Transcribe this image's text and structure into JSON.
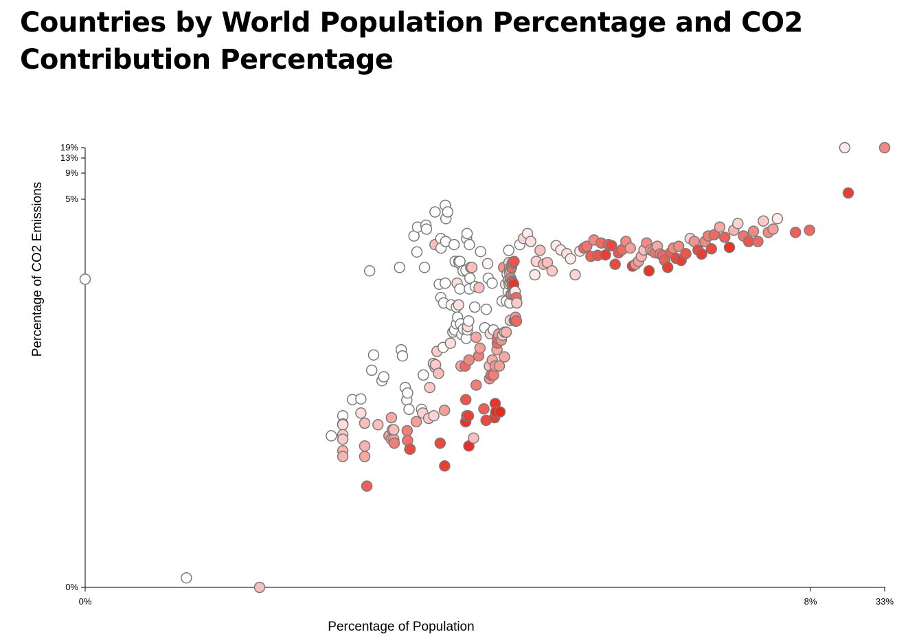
{
  "chart_data": {
    "type": "scatter",
    "title": "Countries by World Population Percentage and CO2 Contribution Percentage",
    "xlabel": "Percentage of Population",
    "ylabel": "Percentage of CO2 Emissions",
    "x_scale": "log",
    "y_scale": "log",
    "x_ticks": [
      "0%",
      "8%",
      "33%"
    ],
    "y_ticks": [
      "19%",
      "13%",
      "9%",
      "5%",
      "0%"
    ],
    "color_low": "#ffffff",
    "color_high": "#e8291e",
    "points": [
      [
        0.0001,
        0.35,
        0
      ],
      [
        0.0005,
        4e-05,
        0
      ],
      [
        0.0016,
        3e-05,
        0.3
      ],
      [
        0.005,
        0.003,
        0
      ],
      [
        0.006,
        0.0055,
        0
      ],
      [
        0.006,
        0.0043,
        0.15
      ],
      [
        0.006,
        0.0042,
        0.15
      ],
      [
        0.006,
        0.0031,
        0.25
      ],
      [
        0.006,
        0.0027,
        0.25
      ],
      [
        0.006,
        0.0019,
        0.35
      ],
      [
        0.006,
        0.0016,
        0.35
      ],
      [
        0.007,
        0.009,
        0
      ],
      [
        0.008,
        0.0092,
        0
      ],
      [
        0.008,
        0.006,
        0.15
      ],
      [
        0.0085,
        0.0044,
        0.3
      ],
      [
        0.0085,
        0.0022,
        0.35
      ],
      [
        0.0085,
        0.0016,
        0.4
      ],
      [
        0.0088,
        0.00065,
        0.75
      ],
      [
        0.0092,
        0.45,
        0
      ],
      [
        0.0095,
        0.022,
        0
      ],
      [
        0.0098,
        0.035,
        0
      ],
      [
        0.0105,
        0.0042,
        0.3
      ],
      [
        0.0112,
        0.016,
        0
      ],
      [
        0.0115,
        0.018,
        0
      ],
      [
        0.0125,
        0.003,
        0.45
      ],
      [
        0.013,
        0.0027,
        0.45
      ],
      [
        0.013,
        0.0052,
        0.4
      ],
      [
        0.0132,
        0.0036,
        0.45
      ],
      [
        0.0135,
        0.0027,
        0.45
      ],
      [
        0.0135,
        0.0036,
        0.3
      ],
      [
        0.0136,
        0.0024,
        0.6
      ],
      [
        0.0148,
        0.5,
        0
      ],
      [
        0.0152,
        0.041,
        0
      ],
      [
        0.0155,
        0.034,
        0
      ],
      [
        0.0162,
        0.013,
        0
      ],
      [
        0.0166,
        0.0089,
        0
      ],
      [
        0.0168,
        0.011,
        0
      ],
      [
        0.0167,
        0.0035,
        0.6
      ],
      [
        0.0168,
        0.0026,
        0.65
      ],
      [
        0.0172,
        0.0067,
        0
      ],
      [
        0.0174,
        0.002,
        0.75
      ],
      [
        0.0175,
        0.002,
        0.85
      ],
      [
        0.0186,
        1.3,
        0
      ],
      [
        0.0193,
        0.0046,
        0.45
      ],
      [
        0.0195,
        0.8,
        0
      ],
      [
        0.0197,
        1.7,
        0
      ],
      [
        0.021,
        0.0067,
        0
      ],
      [
        0.0214,
        0.006,
        0.2
      ],
      [
        0.0216,
        0.019,
        0
      ],
      [
        0.022,
        0.5,
        0
      ],
      [
        0.0225,
        1.8,
        0
      ],
      [
        0.0227,
        1.6,
        0
      ],
      [
        0.0235,
        0.0051,
        0.25
      ],
      [
        0.0239,
        0.013,
        0.25
      ],
      [
        0.0253,
        0.027,
        0.2
      ],
      [
        0.0255,
        0.0055,
        0.2
      ],
      [
        0.026,
        0.024,
        0.25
      ],
      [
        0.026,
        1.0,
        0.3
      ],
      [
        0.026,
        2.7,
        0
      ],
      [
        0.0262,
        0.026,
        0.25
      ],
      [
        0.0268,
        0.039,
        0.25
      ],
      [
        0.0275,
        0.02,
        0.3
      ],
      [
        0.0278,
        0.3,
        0
      ],
      [
        0.0282,
        0.0024,
        0.85
      ],
      [
        0.0285,
        0.2,
        0
      ],
      [
        0.0285,
        1.2,
        0
      ],
      [
        0.0286,
        0.9,
        0
      ],
      [
        0.0296,
        0.044,
        0
      ],
      [
        0.0298,
        0.17,
        0
      ],
      [
        0.0302,
        0.0065,
        0.45
      ],
      [
        0.0303,
        0.0012,
        0.9
      ],
      [
        0.0306,
        0.31,
        0
      ],
      [
        0.0306,
        3.3,
        0
      ],
      [
        0.0308,
        1.1,
        0
      ],
      [
        0.0309,
        2.2,
        0
      ],
      [
        0.0318,
        2.7,
        0
      ],
      [
        0.0332,
        0.05,
        0.15
      ],
      [
        0.0336,
        0.16,
        0
      ],
      [
        0.0345,
        0.07,
        0.15
      ],
      [
        0.0352,
        1.0,
        0
      ],
      [
        0.0355,
        0.075,
        0
      ],
      [
        0.0358,
        0.6,
        0
      ],
      [
        0.0365,
        0.15,
        0
      ],
      [
        0.0366,
        0.09,
        0
      ],
      [
        0.0369,
        0.31,
        0.15
      ],
      [
        0.0372,
        0.11,
        0
      ],
      [
        0.0378,
        0.16,
        0.15
      ],
      [
        0.038,
        0.6,
        0
      ],
      [
        0.0382,
        0.57,
        0.1
      ],
      [
        0.0386,
        0.6,
        0
      ],
      [
        0.0386,
        0.26,
        0
      ],
      [
        0.039,
        0.09,
        0
      ],
      [
        0.0393,
        0.025,
        0.4
      ],
      [
        0.0398,
        0.065,
        0
      ],
      [
        0.0406,
        0.45,
        0.2
      ],
      [
        0.0406,
        0.45,
        0
      ],
      [
        0.0409,
        0.077,
        0
      ],
      [
        0.042,
        0.025,
        0.7
      ],
      [
        0.0423,
        0.0046,
        0.95
      ],
      [
        0.0424,
        0.009,
        0.8
      ],
      [
        0.0425,
        0.46,
        0
      ],
      [
        0.0427,
        0.058,
        0
      ],
      [
        0.0429,
        1.2,
        0.05
      ],
      [
        0.043,
        0.0055,
        0.85
      ],
      [
        0.0433,
        1.4,
        0
      ],
      [
        0.0434,
        0.075,
        0.05
      ],
      [
        0.0436,
        0.084,
        0.1
      ],
      [
        0.0437,
        0.083,
        0.15
      ],
      [
        0.0442,
        0.0055,
        0.9
      ],
      [
        0.0444,
        0.098,
        0
      ],
      [
        0.0445,
        0.0022,
        0.98
      ],
      [
        0.0446,
        0.03,
        0.55
      ],
      [
        0.0449,
        0.26,
        0
      ],
      [
        0.0449,
        1.0,
        0
      ],
      [
        0.0453,
        0.36,
        0
      ],
      [
        0.0458,
        0.5,
        0
      ],
      [
        0.0467,
        0.5,
        0.3
      ],
      [
        0.048,
        0.0028,
        0.3
      ],
      [
        0.0489,
        0.15,
        0
      ],
      [
        0.0493,
        0.28,
        0
      ],
      [
        0.0499,
        0.06,
        0.4
      ],
      [
        0.05,
        0.014,
        0.6
      ],
      [
        0.052,
        0.034,
        0.6
      ],
      [
        0.0523,
        0.27,
        0.3
      ],
      [
        0.0531,
        0.043,
        0.45
      ],
      [
        0.0536,
        0.81,
        0
      ],
      [
        0.0565,
        0.0068,
        0.75
      ],
      [
        0.0573,
        0.08,
        0
      ],
      [
        0.0585,
        0.0048,
        0.85
      ],
      [
        0.0587,
        0.14,
        0
      ],
      [
        0.06,
        0.56,
        0.05
      ],
      [
        0.0606,
        0.36,
        0
      ],
      [
        0.0617,
        0.025,
        0.3
      ],
      [
        0.0619,
        0.017,
        0.5
      ],
      [
        0.0625,
        0.067,
        0.15
      ],
      [
        0.0634,
        0.019,
        0.7
      ],
      [
        0.0645,
        0.31,
        0
      ],
      [
        0.0646,
        0.03,
        0.4
      ],
      [
        0.0658,
        0.075,
        0
      ],
      [
        0.0659,
        0.019,
        0.6
      ],
      [
        0.067,
        0.0052,
        0.9
      ],
      [
        0.0676,
        0.025,
        0.5
      ],
      [
        0.0677,
        0.008,
        0.95
      ],
      [
        0.0683,
        0.0062,
        1.0
      ],
      [
        0.0696,
        0.041,
        0.4
      ],
      [
        0.0699,
        0.05,
        0.7
      ],
      [
        0.0701,
        0.058,
        0.7
      ],
      [
        0.0715,
        0.066,
        0.45
      ],
      [
        0.0723,
        0.025,
        0.45
      ],
      [
        0.073,
        0.0062,
        1.0
      ],
      [
        0.0746,
        0.055,
        0.5
      ],
      [
        0.0755,
        0.18,
        0
      ],
      [
        0.0761,
        0.064,
        0.2
      ],
      [
        0.0773,
        0.5,
        0.5
      ],
      [
        0.0783,
        0.033,
        0.4
      ],
      [
        0.0785,
        0.07,
        0.25
      ],
      [
        0.0799,
        0.3,
        0.05
      ],
      [
        0.0806,
        0.07,
        0.35
      ],
      [
        0.0808,
        0.18,
        0
      ],
      [
        0.0818,
        0.41,
        0
      ],
      [
        0.0832,
        0.24,
        0
      ],
      [
        0.0833,
        0.34,
        0.4
      ],
      [
        0.0839,
        0.84,
        0
      ],
      [
        0.0842,
        0.58,
        0.2
      ],
      [
        0.0844,
        0.3,
        0.15
      ],
      [
        0.0847,
        0.43,
        0.1
      ],
      [
        0.085,
        0.49,
        0.15
      ],
      [
        0.0854,
        0.17,
        0.05
      ],
      [
        0.0856,
        0.32,
        0.4
      ],
      [
        0.0859,
        0.1,
        0.2
      ],
      [
        0.086,
        0.46,
        0.45
      ],
      [
        0.0866,
        0.36,
        0.6
      ],
      [
        0.087,
        0.22,
        0.15
      ],
      [
        0.0876,
        0.5,
        0.7
      ],
      [
        0.0877,
        0.22,
        0.2
      ],
      [
        0.0883,
        0.33,
        0.55
      ],
      [
        0.0884,
        0.33,
        0.8
      ],
      [
        0.0887,
        0.56,
        0.1
      ],
      [
        0.089,
        0.28,
        0.6
      ],
      [
        0.0893,
        0.58,
        0.7
      ],
      [
        0.0896,
        0.31,
        0.6
      ],
      [
        0.0898,
        0.22,
        0.65
      ],
      [
        0.0902,
        0.28,
        0.75
      ],
      [
        0.0907,
        0.3,
        0.95
      ],
      [
        0.0913,
        0.6,
        0.8
      ],
      [
        0.0917,
        0.1,
        0.8
      ],
      [
        0.0929,
        0.24,
        0.1
      ],
      [
        0.0934,
        0.11,
        0.5
      ],
      [
        0.094,
        0.097,
        0.3
      ],
      [
        0.0945,
        0.2,
        0.7
      ],
      [
        0.0949,
        0.098,
        0.7
      ],
      [
        0.0953,
        0.17,
        0.25
      ],
      [
        0.1,
        1.0,
        0
      ],
      [
        0.106,
        1.2,
        0.2
      ],
      [
        0.113,
        1.4,
        0.1
      ],
      [
        0.119,
        1.1,
        0.15
      ],
      [
        0.127,
        0.4,
        0.1
      ],
      [
        0.13,
        0.6,
        0.2
      ],
      [
        0.138,
        0.84,
        0.3
      ],
      [
        0.146,
        0.55,
        0.35
      ],
      [
        0.155,
        0.58,
        0.3
      ],
      [
        0.167,
        0.45,
        0.25
      ],
      [
        0.178,
        0.97,
        0.1
      ],
      [
        0.192,
        0.85,
        0.1
      ],
      [
        0.211,
        0.76,
        0.15
      ],
      [
        0.224,
        0.65,
        0.1
      ],
      [
        0.241,
        0.4,
        0.2
      ],
      [
        0.26,
        0.82,
        0.1
      ],
      [
        0.277,
        0.9,
        0.7
      ],
      [
        0.29,
        0.95,
        0.65
      ],
      [
        0.31,
        0.7,
        0.75
      ],
      [
        0.325,
        1.15,
        0.55
      ],
      [
        0.345,
        0.72,
        0.8
      ],
      [
        0.365,
        1.05,
        0.7
      ],
      [
        0.39,
        0.73,
        0.9
      ],
      [
        0.41,
        1.0,
        0.75
      ],
      [
        0.43,
        0.97,
        0.85
      ],
      [
        0.455,
        0.55,
        0.85
      ],
      [
        0.48,
        0.78,
        0.8
      ],
      [
        0.51,
        0.86,
        0.7
      ],
      [
        0.54,
        1.1,
        0.55
      ],
      [
        0.58,
        0.9,
        0.45
      ],
      [
        0.6,
        0.52,
        0.9
      ],
      [
        0.63,
        0.55,
        0.5
      ],
      [
        0.66,
        0.6,
        0.45
      ],
      [
        0.69,
        0.7,
        0.35
      ],
      [
        0.72,
        0.85,
        0.3
      ],
      [
        0.75,
        1.05,
        0.55
      ],
      [
        0.78,
        0.45,
        0.95
      ],
      [
        0.8,
        0.85,
        0.45
      ],
      [
        0.83,
        0.82,
        0.55
      ],
      [
        0.86,
        0.78,
        0.65
      ],
      [
        0.89,
        0.95,
        0.4
      ],
      [
        0.93,
        0.75,
        0.6
      ],
      [
        0.97,
        0.72,
        0.7
      ],
      [
        1.0,
        0.62,
        0.75
      ],
      [
        1.05,
        0.5,
        0.9
      ],
      [
        1.1,
        0.78,
        0.75
      ],
      [
        1.15,
        0.9,
        0.55
      ],
      [
        1.2,
        0.66,
        0.85
      ],
      [
        1.25,
        0.95,
        0.55
      ],
      [
        1.3,
        0.62,
        0.9
      ],
      [
        1.4,
        0.76,
        0.8
      ],
      [
        1.5,
        1.2,
        0.2
      ],
      [
        1.6,
        1.1,
        0.5
      ],
      [
        1.7,
        0.85,
        0.85
      ],
      [
        1.8,
        0.75,
        0.9
      ],
      [
        1.9,
        1.1,
        0.55
      ],
      [
        2.0,
        1.3,
        0.6
      ],
      [
        2.1,
        0.88,
        0.85
      ],
      [
        2.2,
        1.35,
        0.7
      ],
      [
        2.4,
        1.7,
        0.4
      ],
      [
        2.6,
        1.25,
        0.75
      ],
      [
        2.8,
        0.92,
        0.95
      ],
      [
        3.0,
        1.55,
        0.35
      ],
      [
        3.2,
        1.9,
        0.2
      ],
      [
        3.5,
        1.3,
        0.65
      ],
      [
        3.8,
        1.1,
        0.8
      ],
      [
        4.1,
        1.5,
        0.55
      ],
      [
        4.4,
        1.1,
        0.7
      ],
      [
        4.8,
        2.05,
        0.25
      ],
      [
        5.2,
        1.45,
        0.55
      ],
      [
        5.6,
        1.6,
        0.45
      ],
      [
        6.0,
        2.2,
        0.1
      ],
      [
        8.0,
        1.45,
        0.75
      ],
      [
        10.0,
        1.55,
        0.7
      ],
      [
        17.5,
        19.0,
        0.1
      ],
      [
        18.5,
        4.8,
        0.9
      ],
      [
        33.0,
        19.0,
        0.55
      ]
    ]
  }
}
